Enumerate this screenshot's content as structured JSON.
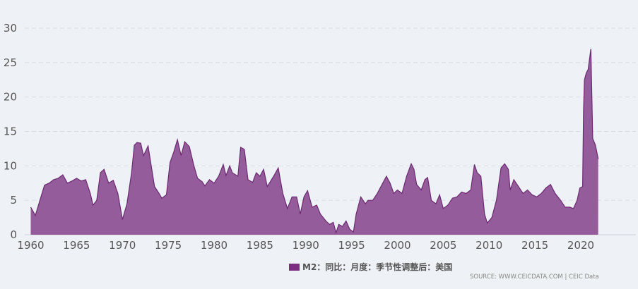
{
  "chart_data": {
    "type": "area",
    "title": "",
    "xlabel": "",
    "ylabel": "",
    "xlim": [
      1960,
      2022
    ],
    "ylim": [
      0,
      30
    ],
    "grid": true,
    "legend_placement": "bottom",
    "yticks": [
      "0",
      "5",
      "10",
      "15",
      "20",
      "25",
      "30"
    ],
    "xticks": [
      "1960",
      "1965",
      "1970",
      "1975",
      "1980",
      "1985",
      "1990",
      "1995",
      "2000",
      "2005",
      "2010",
      "2015",
      "2020"
    ],
    "series": [
      {
        "name": "M2：同比：月度：季节性调整后：美国",
        "color": "#7b2d80",
        "x": [
          1960,
          1960.5,
          1961,
          1961.5,
          1962,
          1962.5,
          1963,
          1963.5,
          1964,
          1964.5,
          1965,
          1965.5,
          1966,
          1966.5,
          1966.8,
          1967.2,
          1967.6,
          1968,
          1968.5,
          1969,
          1969.5,
          1970,
          1970.5,
          1971,
          1971.3,
          1971.6,
          1972,
          1972.3,
          1972.8,
          1973,
          1973.5,
          1974,
          1974.3,
          1974.8,
          1975.2,
          1975.6,
          1976,
          1976.4,
          1976.8,
          1977.3,
          1977.8,
          1978.2,
          1978.7,
          1979,
          1979.5,
          1980,
          1980.5,
          1981,
          1981.3,
          1981.7,
          1982,
          1982.6,
          1982.9,
          1983.3,
          1983.7,
          1984.2,
          1984.6,
          1985,
          1985.4,
          1985.8,
          1986.5,
          1987,
          1987.5,
          1988,
          1988.5,
          1989,
          1989.4,
          1989.8,
          1990.2,
          1990.7,
          1991.2,
          1991.6,
          1992.2,
          1992.6,
          1993,
          1993.3,
          1993.6,
          1994,
          1994.4,
          1994.8,
          1995.2,
          1995.5,
          1996,
          1996.5,
          1996.8,
          1997.3,
          1997.8,
          1998.4,
          1998.8,
          1999.2,
          1999.6,
          2000,
          2000.5,
          2001,
          2001.5,
          2001.8,
          2002.1,
          2002.6,
          2003,
          2003.3,
          2003.7,
          2004.2,
          2004.6,
          2005,
          2005.5,
          2006,
          2006.5,
          2007,
          2007.5,
          2008,
          2008.4,
          2008.7,
          2009.1,
          2009.5,
          2009.8,
          2010.3,
          2010.8,
          2011.3,
          2011.7,
          2012.1,
          2012.3,
          2012.7,
          2013.2,
          2013.7,
          2014.2,
          2014.7,
          2015.2,
          2015.7,
          2016.2,
          2016.7,
          2017.2,
          2017.8,
          2018.3,
          2018.8,
          2019.2,
          2019.6,
          2019.9,
          2020.2,
          2020.3,
          2020.4,
          2020.6,
          2020.8,
          2021.1,
          2021.3,
          2021.6,
          2021.9
        ],
        "values": [
          4,
          2.8,
          5,
          7.2,
          7.5,
          8,
          8.2,
          8.7,
          7.5,
          7.8,
          8.2,
          7.8,
          8,
          6,
          4.3,
          5,
          9,
          9.5,
          7.5,
          7.9,
          6,
          2.2,
          4.5,
          9,
          13,
          13.4,
          13.3,
          11.5,
          12.9,
          11.2,
          7,
          6,
          5.3,
          5.8,
          10.5,
          12,
          13.8,
          11.5,
          13.5,
          12.8,
          10,
          8.2,
          7.7,
          7.1,
          8,
          7.5,
          8.5,
          10.2,
          8.6,
          10,
          9,
          8.5,
          12.7,
          12.4,
          8,
          7.6,
          9,
          8.5,
          9.5,
          7,
          8.5,
          9.7,
          6,
          3.8,
          5.5,
          5.5,
          3,
          5.5,
          6.4,
          4,
          4.3,
          3,
          2,
          1.5,
          1.8,
          0.3,
          1.5,
          1.2,
          2,
          0.8,
          0.4,
          3,
          5.5,
          4.5,
          5,
          5,
          6,
          7.5,
          8.5,
          7.5,
          6,
          6.5,
          6,
          8.5,
          10.3,
          9.5,
          7.3,
          6.5,
          8,
          8.3,
          5,
          4.5,
          5.8,
          3.8,
          4.3,
          5.3,
          5.5,
          6.2,
          6,
          6.5,
          10.2,
          9,
          8.5,
          3,
          1.7,
          2.5,
          5,
          9.7,
          10.3,
          9.5,
          6.5,
          8,
          7,
          6,
          6.5,
          5.8,
          5.5,
          6,
          6.8,
          7.3,
          6,
          5,
          4,
          4,
          3.8,
          5,
          6.8,
          7,
          18,
          22.5,
          23.5,
          24,
          27,
          14,
          13,
          11
        ]
      }
    ]
  },
  "legend": {
    "label": "M2：同比：月度：季节性调整后：美国",
    "color": "#7b2d80"
  },
  "source": "SOURCE: WWW.CEICDATA.COM | CEIC Data"
}
